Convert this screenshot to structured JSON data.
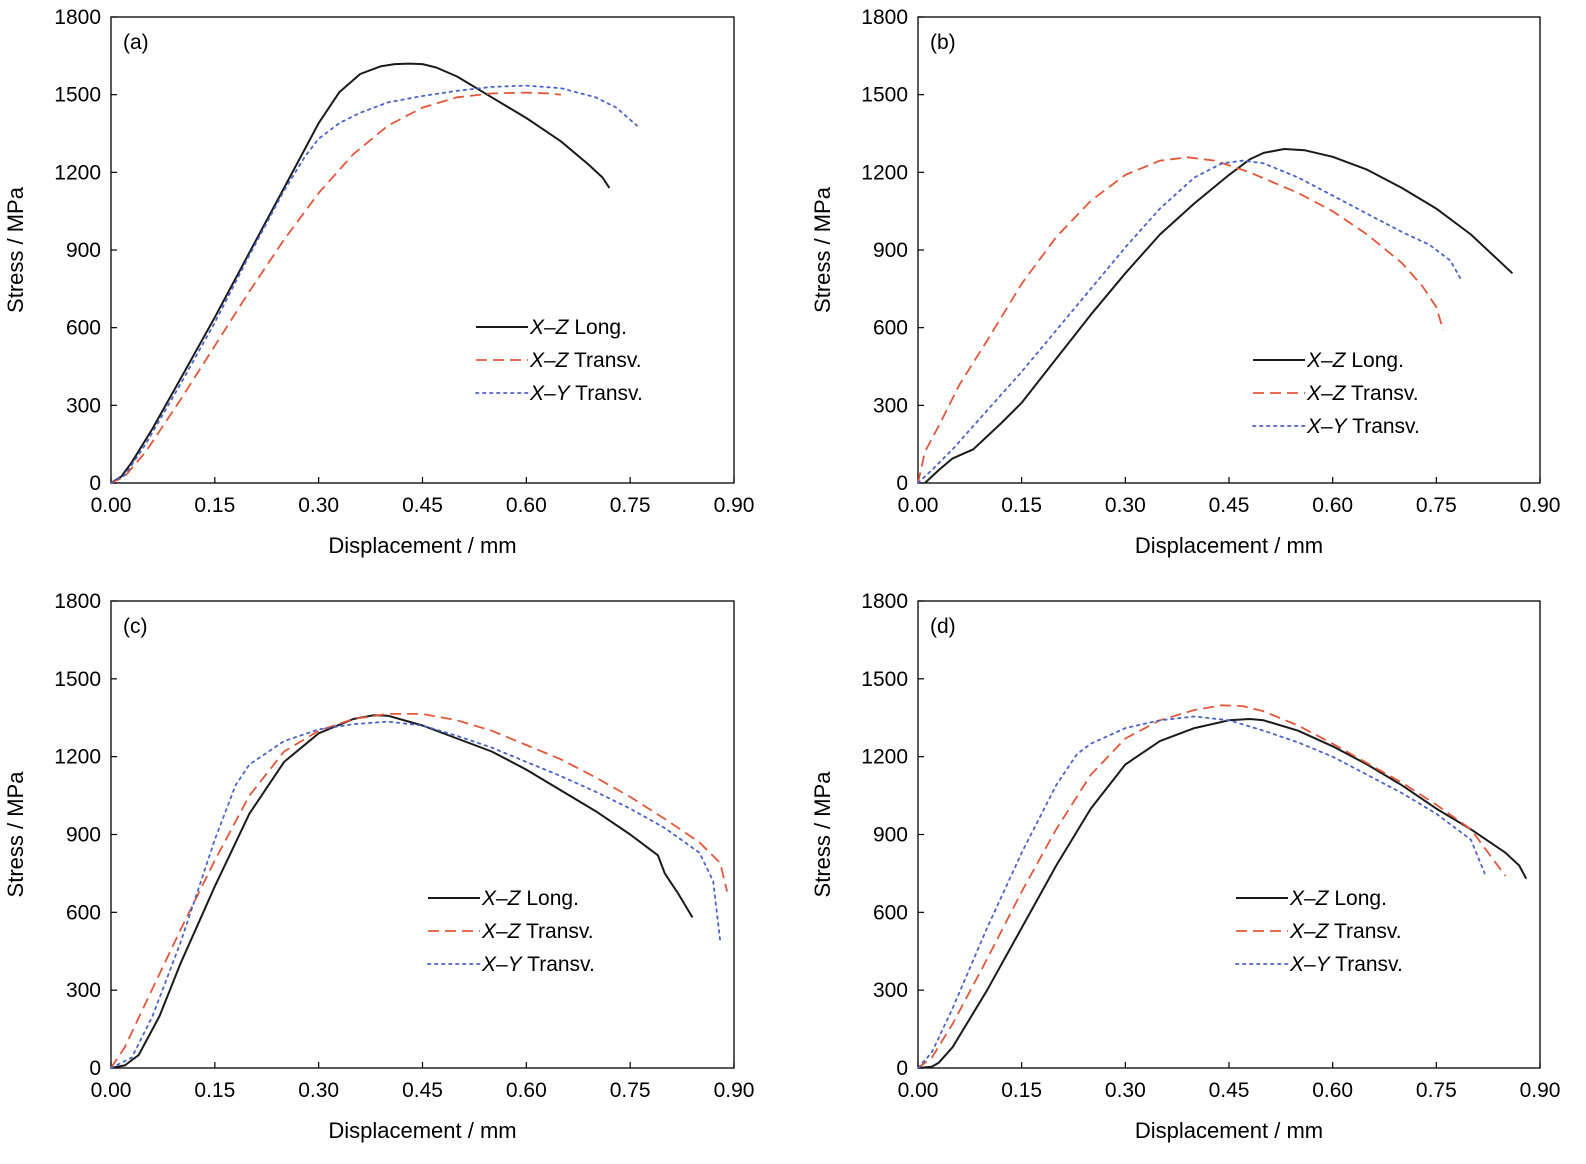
{
  "colors": {
    "X-Z Long.": "#1a1a1a",
    "X-Z Transv.": "#e2573a",
    "X-Y Transv.": "#4a63c8"
  },
  "chart_data": [
    {
      "type": "line",
      "label": "(a)",
      "xlabel": "Displacement / mm",
      "ylabel": "Stress / MPa",
      "xlim": [
        0,
        0.9
      ],
      "ylim": [
        0,
        1800
      ],
      "xticks": [
        "0.00",
        "0.15",
        "0.30",
        "0.45",
        "0.60",
        "0.75",
        "0.90"
      ],
      "yticks": [
        "0",
        "300",
        "600",
        "900",
        "1200",
        "1500",
        "1800"
      ],
      "legend": {
        "position": "right-middle"
      },
      "series": [
        {
          "name_var": "X–Z",
          "name_rest": " Long.",
          "color_key": "X-Z Long.",
          "dash": "solid",
          "x": [
            0,
            0.015,
            0.03,
            0.06,
            0.1,
            0.15,
            0.2,
            0.25,
            0.3,
            0.33,
            0.36,
            0.39,
            0.41,
            0.43,
            0.45,
            0.47,
            0.5,
            0.55,
            0.6,
            0.65,
            0.69,
            0.71,
            0.72
          ],
          "y": [
            0,
            25,
            80,
            210,
            400,
            640,
            890,
            1140,
            1390,
            1510,
            1580,
            1610,
            1618,
            1620,
            1618,
            1605,
            1570,
            1490,
            1410,
            1320,
            1230,
            1180,
            1140
          ]
        },
        {
          "name_var": "X–Z",
          "name_rest": " Transv.",
          "color_key": "X-Z Transv.",
          "dash": "dashed",
          "x": [
            0,
            0.02,
            0.05,
            0.1,
            0.15,
            0.2,
            0.25,
            0.3,
            0.35,
            0.4,
            0.45,
            0.5,
            0.55,
            0.6,
            0.63,
            0.65
          ],
          "y": [
            0,
            25,
            120,
            320,
            530,
            740,
            940,
            1120,
            1270,
            1380,
            1450,
            1490,
            1505,
            1508,
            1505,
            1500
          ]
        },
        {
          "name_var": "X–Y",
          "name_rest": " Transv.",
          "color_key": "X-Y Transv.",
          "dash": "dotted",
          "x": [
            0,
            0.02,
            0.05,
            0.1,
            0.15,
            0.2,
            0.25,
            0.28,
            0.3,
            0.33,
            0.36,
            0.4,
            0.45,
            0.5,
            0.55,
            0.6,
            0.65,
            0.7,
            0.73,
            0.76
          ],
          "y": [
            0,
            30,
            150,
            380,
            620,
            880,
            1130,
            1260,
            1330,
            1390,
            1430,
            1470,
            1495,
            1515,
            1530,
            1535,
            1525,
            1490,
            1450,
            1380
          ]
        }
      ]
    },
    {
      "type": "line",
      "label": "(b)",
      "xlabel": "Displacement / mm",
      "ylabel": "Stress / MPa",
      "xlim": [
        0,
        0.9
      ],
      "ylim": [
        0,
        1800
      ],
      "xticks": [
        "0.00",
        "0.15",
        "0.30",
        "0.45",
        "0.60",
        "0.75",
        "0.90"
      ],
      "yticks": [
        "0",
        "300",
        "600",
        "900",
        "1200",
        "1500",
        "1800"
      ],
      "legend": {
        "position": "right-bottom"
      },
      "series": [
        {
          "name_var": "X–Z",
          "name_rest": " Long.",
          "color_key": "X-Z Long.",
          "dash": "solid",
          "x": [
            0.01,
            0.03,
            0.05,
            0.08,
            0.1,
            0.12,
            0.15,
            0.2,
            0.25,
            0.3,
            0.35,
            0.4,
            0.45,
            0.48,
            0.5,
            0.53,
            0.56,
            0.6,
            0.65,
            0.7,
            0.75,
            0.8,
            0.86
          ],
          "y": [
            0,
            50,
            95,
            130,
            180,
            230,
            310,
            480,
            650,
            810,
            960,
            1080,
            1190,
            1250,
            1275,
            1290,
            1285,
            1260,
            1210,
            1140,
            1060,
            960,
            810
          ]
        },
        {
          "name_var": "X–Z",
          "name_rest": " Transv.",
          "color_key": "X-Z Transv.",
          "dash": "dashed",
          "x": [
            0,
            0.01,
            0.03,
            0.06,
            0.1,
            0.15,
            0.2,
            0.25,
            0.3,
            0.35,
            0.39,
            0.43,
            0.48,
            0.55,
            0.6,
            0.65,
            0.7,
            0.73,
            0.75,
            0.76
          ],
          "y": [
            0,
            120,
            220,
            380,
            550,
            770,
            950,
            1090,
            1190,
            1245,
            1258,
            1245,
            1200,
            1120,
            1050,
            960,
            850,
            760,
            680,
            590
          ]
        },
        {
          "name_var": "X–Y",
          "name_rest": " Transv.",
          "color_key": "X-Y Transv.",
          "dash": "dotted",
          "x": [
            0,
            0.02,
            0.05,
            0.1,
            0.15,
            0.2,
            0.25,
            0.3,
            0.35,
            0.4,
            0.44,
            0.47,
            0.5,
            0.55,
            0.6,
            0.65,
            0.7,
            0.74,
            0.77,
            0.785
          ],
          "y": [
            0,
            50,
            130,
            280,
            430,
            590,
            750,
            910,
            1060,
            1180,
            1235,
            1245,
            1235,
            1180,
            1110,
            1040,
            970,
            920,
            860,
            790
          ]
        }
      ]
    },
    {
      "type": "line",
      "label": "(c)",
      "xlabel": "Displacement / mm",
      "ylabel": "Stress / MPa",
      "xlim": [
        0,
        0.9
      ],
      "ylim": [
        0,
        1800
      ],
      "xticks": [
        "0.00",
        "0.15",
        "0.30",
        "0.45",
        "0.60",
        "0.75",
        "0.90"
      ],
      "yticks": [
        "0",
        "300",
        "600",
        "900",
        "1200",
        "1500",
        "1800"
      ],
      "legend": {
        "position": "right-bottom"
      },
      "series": [
        {
          "name_var": "X–Z",
          "name_rest": " Long.",
          "color_key": "X-Z Long.",
          "dash": "solid",
          "x": [
            0,
            0.02,
            0.04,
            0.07,
            0.1,
            0.15,
            0.2,
            0.25,
            0.3,
            0.35,
            0.38,
            0.4,
            0.45,
            0.5,
            0.55,
            0.6,
            0.65,
            0.7,
            0.75,
            0.79,
            0.8,
            0.82,
            0.84
          ],
          "y": [
            0,
            10,
            50,
            200,
            400,
            700,
            980,
            1180,
            1290,
            1345,
            1360,
            1358,
            1320,
            1270,
            1220,
            1150,
            1070,
            990,
            900,
            820,
            750,
            670,
            580
          ]
        },
        {
          "name_var": "X–Z",
          "name_rest": " Transv.",
          "color_key": "X-Z Transv.",
          "dash": "dashed",
          "x": [
            0,
            0.02,
            0.05,
            0.1,
            0.15,
            0.2,
            0.25,
            0.3,
            0.35,
            0.4,
            0.45,
            0.5,
            0.55,
            0.6,
            0.65,
            0.7,
            0.75,
            0.8,
            0.85,
            0.88,
            0.89
          ],
          "y": [
            0,
            80,
            250,
            530,
            800,
            1050,
            1220,
            1300,
            1345,
            1365,
            1365,
            1340,
            1300,
            1245,
            1190,
            1120,
            1045,
            960,
            870,
            790,
            680
          ]
        },
        {
          "name_var": "X–Y",
          "name_rest": " Transv.",
          "color_key": "X-Y Transv.",
          "dash": "dotted",
          "x": [
            0,
            0.03,
            0.06,
            0.1,
            0.15,
            0.18,
            0.2,
            0.25,
            0.3,
            0.35,
            0.4,
            0.45,
            0.5,
            0.55,
            0.6,
            0.65,
            0.7,
            0.75,
            0.8,
            0.85,
            0.87,
            0.88
          ],
          "y": [
            0,
            40,
            200,
            480,
            880,
            1090,
            1170,
            1260,
            1305,
            1325,
            1335,
            1320,
            1280,
            1235,
            1180,
            1125,
            1065,
            1000,
            925,
            830,
            720,
            490
          ]
        }
      ]
    },
    {
      "type": "line",
      "label": "(d)",
      "xlabel": "Displacement / mm",
      "ylabel": "Stress / MPa",
      "xlim": [
        0,
        0.9
      ],
      "ylim": [
        0,
        1800
      ],
      "xticks": [
        "0.00",
        "0.15",
        "0.30",
        "0.45",
        "0.60",
        "0.75",
        "0.90"
      ],
      "yticks": [
        "0",
        "300",
        "600",
        "900",
        "1200",
        "1500",
        "1800"
      ],
      "legend": {
        "position": "right-bottom"
      },
      "series": [
        {
          "name_var": "X–Z",
          "name_rest": " Long.",
          "color_key": "X-Z Long.",
          "dash": "solid",
          "x": [
            0,
            0.02,
            0.03,
            0.05,
            0.1,
            0.15,
            0.2,
            0.25,
            0.3,
            0.35,
            0.4,
            0.45,
            0.48,
            0.5,
            0.55,
            0.6,
            0.65,
            0.7,
            0.75,
            0.8,
            0.85,
            0.87,
            0.88
          ],
          "y": [
            0,
            5,
            20,
            80,
            300,
            540,
            780,
            1000,
            1170,
            1260,
            1310,
            1340,
            1345,
            1340,
            1300,
            1240,
            1170,
            1090,
            1000,
            920,
            830,
            780,
            730
          ]
        },
        {
          "name_var": "X–Z",
          "name_rest": " Transv.",
          "color_key": "X-Z Transv.",
          "dash": "dashed",
          "x": [
            0,
            0.02,
            0.05,
            0.1,
            0.15,
            0.2,
            0.25,
            0.3,
            0.35,
            0.4,
            0.44,
            0.47,
            0.5,
            0.55,
            0.6,
            0.65,
            0.7,
            0.75,
            0.8,
            0.85
          ],
          "y": [
            0,
            40,
            170,
            420,
            680,
            920,
            1130,
            1270,
            1340,
            1380,
            1398,
            1395,
            1375,
            1320,
            1250,
            1175,
            1100,
            1015,
            920,
            740
          ]
        },
        {
          "name_var": "X–Y",
          "name_rest": " Transv.",
          "color_key": "X-Y Transv.",
          "dash": "dotted",
          "x": [
            0,
            0.02,
            0.05,
            0.1,
            0.15,
            0.2,
            0.23,
            0.25,
            0.3,
            0.35,
            0.4,
            0.45,
            0.5,
            0.55,
            0.6,
            0.65,
            0.7,
            0.75,
            0.8,
            0.82
          ],
          "y": [
            0,
            60,
            230,
            540,
            830,
            1090,
            1210,
            1250,
            1310,
            1340,
            1355,
            1340,
            1300,
            1255,
            1200,
            1130,
            1060,
            980,
            880,
            750
          ]
        }
      ]
    }
  ]
}
